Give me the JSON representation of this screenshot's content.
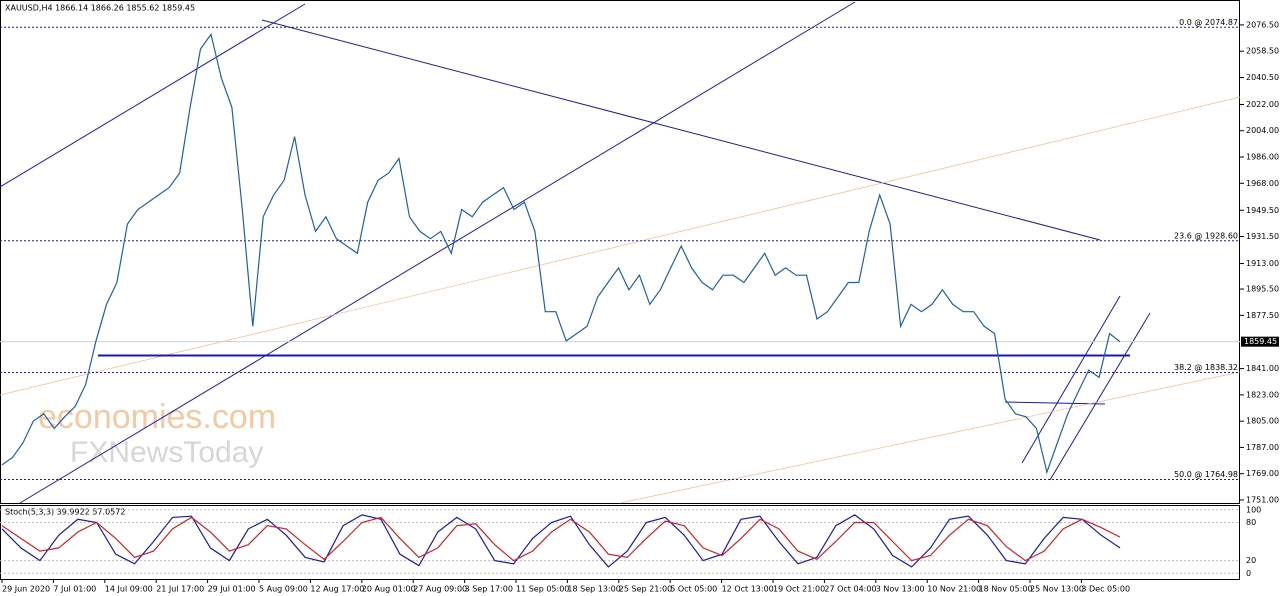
{
  "chart_data": [
    {
      "type": "line",
      "title": "XAUUSD,H4  1866.14 1866.26 1855.62 1859.45",
      "x_labels": [
        "29 Jun 2020",
        "7 Jul 01:00",
        "14 Jul 09:00",
        "21 Jul 17:00",
        "29 Jul 01:00",
        "5 Aug 09:00",
        "12 Aug 17:00",
        "20 Aug 01:00",
        "27 Aug 09:00",
        "3 Sep 17:00",
        "11 Sep 05:00",
        "18 Sep 13:00",
        "25 Sep 21:00",
        "5 Oct 05:00",
        "12 Oct 13:00",
        "19 Oct 21:00",
        "27 Oct 04:00",
        "3 Nov 13:00",
        "10 Nov 21:00",
        "18 Nov 05:00",
        "25 Nov 13:00",
        "3 Dec 05:00"
      ],
      "series": [
        {
          "name": "XAUUSD",
          "color": "#1f5fa8",
          "values": [
            1775,
            1780,
            1790,
            1805,
            1810,
            1800,
            1808,
            1815,
            1830,
            1860,
            1885,
            1900,
            1940,
            1950,
            1955,
            1960,
            1965,
            1975,
            2020,
            2060,
            2070,
            2040,
            2020,
            1950,
            1870,
            1945,
            1960,
            1970,
            2000,
            1960,
            1935,
            1945,
            1930,
            1925,
            1920,
            1955,
            1970,
            1975,
            1985,
            1945,
            1935,
            1930,
            1935,
            1920,
            1950,
            1945,
            1955,
            1960,
            1965,
            1950,
            1955,
            1935,
            1880,
            1880,
            1860,
            1865,
            1870,
            1890,
            1900,
            1910,
            1895,
            1905,
            1885,
            1895,
            1910,
            1925,
            1910,
            1900,
            1895,
            1905,
            1905,
            1900,
            1910,
            1920,
            1905,
            1910,
            1905,
            1905,
            1875,
            1880,
            1890,
            1900,
            1900,
            1935,
            1960,
            1940,
            1870,
            1885,
            1880,
            1885,
            1895,
            1885,
            1880,
            1880,
            1870,
            1865,
            1820,
            1810,
            1808,
            1800,
            1770,
            1790,
            1810,
            1825,
            1840,
            1835,
            1865,
            1859.45
          ]
        }
      ],
      "ylim": [
        1748.9,
        2092.9
      ],
      "yticks": [
        {
          "value": 2076.5,
          "label": "2076.50"
        },
        {
          "value": 2058.5,
          "label": "2058.50"
        },
        {
          "value": 2040.5,
          "label": "2040.50"
        },
        {
          "value": 2022,
          "label": "2022.00"
        },
        {
          "value": 2004,
          "label": "2004.00"
        },
        {
          "value": 1986,
          "label": "1986.00"
        },
        {
          "value": 1968,
          "label": "1968.00"
        },
        {
          "value": 1949.5,
          "label": "1949.50"
        },
        {
          "value": 1931.5,
          "label": "1931.50"
        },
        {
          "value": 1913,
          "label": "1913.00"
        },
        {
          "value": 1895.5,
          "label": "1895.50"
        },
        {
          "value": 1877.5,
          "label": "1877.50"
        },
        {
          "value": 1841,
          "label": "1841.00"
        },
        {
          "value": 1823,
          "label": "1823.00"
        },
        {
          "value": 1805,
          "label": "1805.00"
        },
        {
          "value": 1787,
          "label": "1787.00"
        },
        {
          "value": 1769,
          "label": "1769.00"
        },
        {
          "value": 1751,
          "label": "1751.00"
        }
      ],
      "last_price": 1859.45,
      "fib_levels": [
        {
          "value": 2074.87,
          "label": "0.0 @ 2074.87"
        },
        {
          "value": 1928.6,
          "label": "23.6 @ 1928.60"
        },
        {
          "value": 1838.32,
          "label": "38.2 @ 1838.32"
        },
        {
          "value": 1764.98,
          "label": "50.0 @ 1764.98"
        }
      ],
      "support_level": 1850,
      "watermark": [
        "economies.com",
        "FXNewsToday"
      ]
    },
    {
      "type": "line",
      "title": "Stoch(5,3,3) 39.9922 57.0572",
      "series": [
        {
          "name": "%K",
          "color": "#1a1aa6",
          "values": [
            70,
            40,
            20,
            60,
            85,
            80,
            30,
            15,
            50,
            88,
            90,
            40,
            20,
            70,
            85,
            60,
            25,
            18,
            75,
            92,
            85,
            30,
            12,
            65,
            88,
            70,
            20,
            15,
            55,
            80,
            90,
            45,
            10,
            35,
            80,
            88,
            60,
            20,
            30,
            85,
            90,
            50,
            15,
            25,
            75,
            92,
            70,
            28,
            10,
            40,
            85,
            90,
            60,
            20,
            15,
            55,
            88,
            85,
            60,
            40
          ]
        },
        {
          "name": "%D",
          "color": "#d42020",
          "values": [
            75,
            55,
            35,
            40,
            65,
            80,
            55,
            25,
            35,
            70,
            88,
            65,
            35,
            45,
            75,
            70,
            45,
            22,
            50,
            80,
            88,
            55,
            25,
            40,
            75,
            78,
            45,
            20,
            35,
            65,
            85,
            65,
            30,
            25,
            55,
            82,
            75,
            40,
            28,
            55,
            85,
            70,
            35,
            22,
            50,
            80,
            80,
            50,
            20,
            28,
            60,
            85,
            75,
            42,
            20,
            35,
            70,
            85,
            72,
            57
          ]
        }
      ],
      "ylim": [
        -9,
        106
      ],
      "yticks": [
        100,
        80,
        20,
        0
      ]
    }
  ]
}
